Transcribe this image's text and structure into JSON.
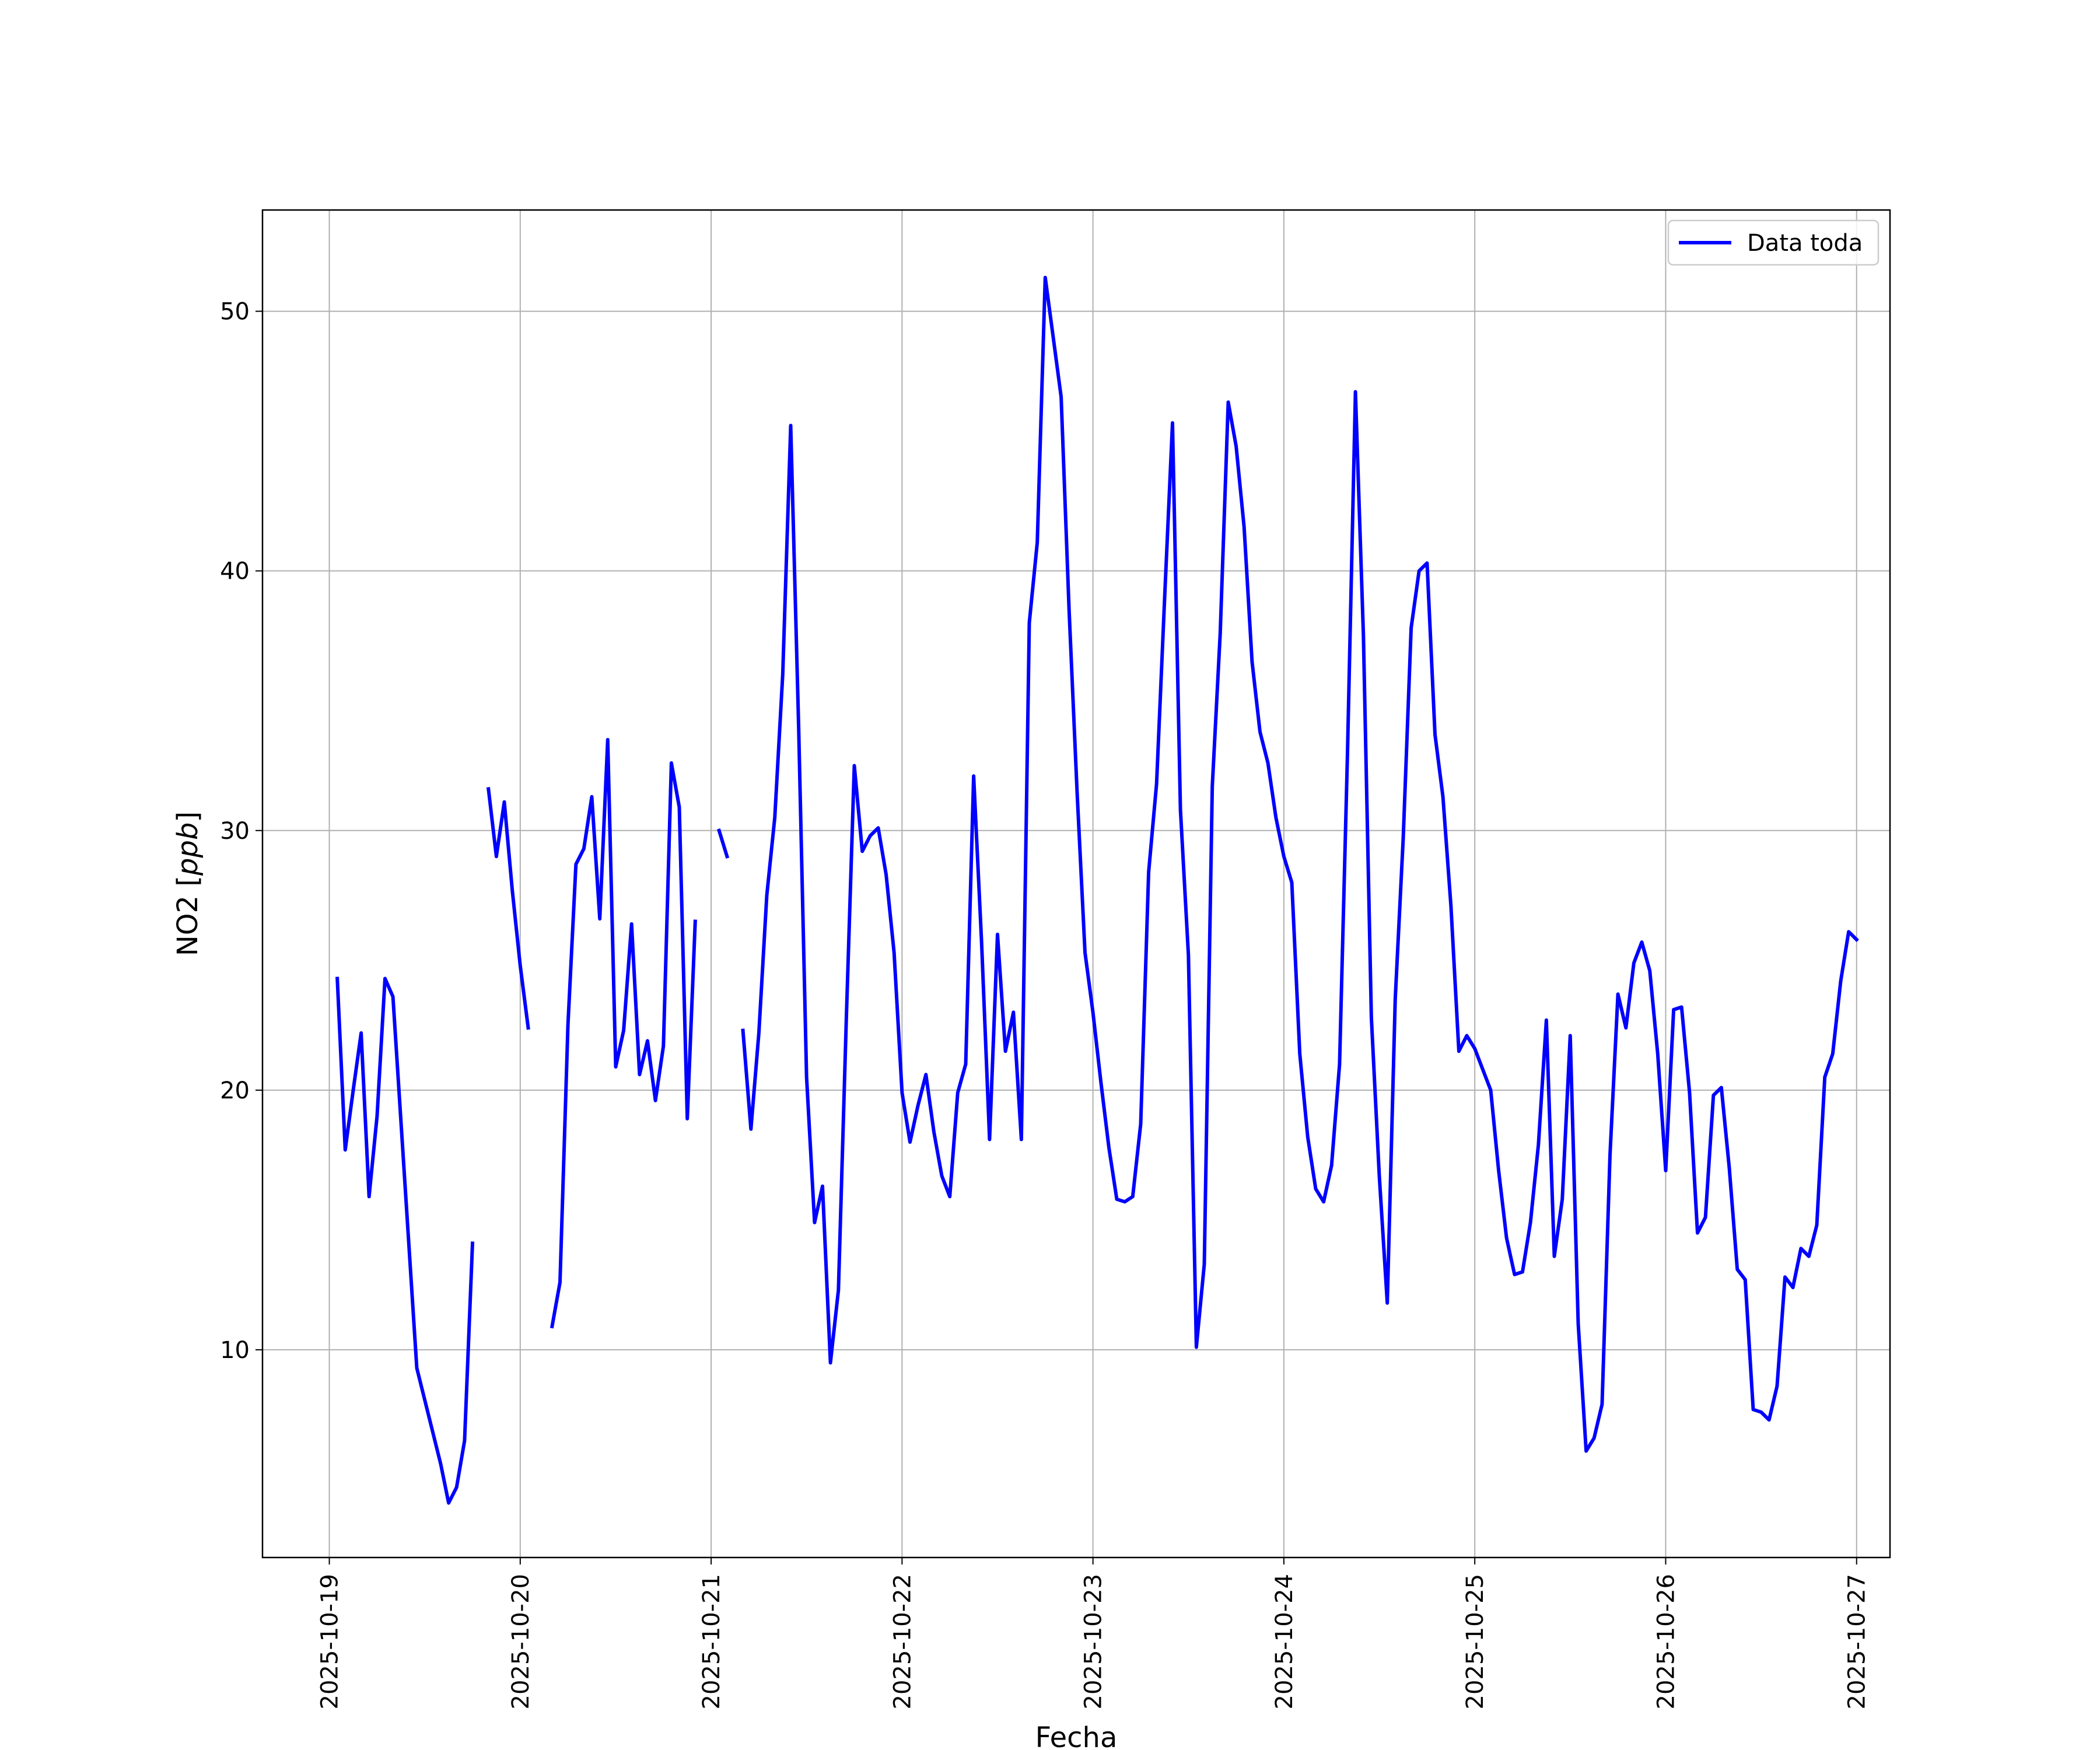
{
  "chart_data": {
    "type": "line",
    "title": "",
    "xlabel": "Fecha",
    "ylabel": "NO2 [ppb]",
    "ylabel_var": "NO2 ",
    "ylabel_unit": "ppb",
    "x_ticks": [
      "2025-10-19",
      "2025-10-20",
      "2025-10-21",
      "2025-10-22",
      "2025-10-23",
      "2025-10-24",
      "2025-10-25",
      "2025-10-26",
      "2025-10-27"
    ],
    "y_ticks": [
      10,
      20,
      30,
      40,
      50
    ],
    "xlim": [
      "2025-10-18T15:36",
      "2025-10-27T04:12"
    ],
    "ylim": [
      2.0,
      53.9
    ],
    "grid": true,
    "legend_position": "top-right",
    "color": "#0000ff",
    "series": [
      {
        "name": "Data toda",
        "segments": [
          [
            [
              "2025-10-19T01:00",
              24.3
            ],
            [
              "2025-10-19T02:00",
              17.7
            ],
            [
              "2025-10-19T03:00",
              20.0
            ],
            [
              "2025-10-19T04:00",
              22.2
            ],
            [
              "2025-10-19T05:00",
              15.9
            ],
            [
              "2025-10-19T06:00",
              19.0
            ],
            [
              "2025-10-19T07:00",
              24.3
            ],
            [
              "2025-10-19T08:00",
              23.6
            ],
            [
              "2025-10-19T11:00",
              9.3
            ],
            [
              "2025-10-19T14:00",
              5.6
            ],
            [
              "2025-10-19T15:00",
              4.1
            ],
            [
              "2025-10-19T16:00",
              4.7
            ],
            [
              "2025-10-19T17:00",
              6.5
            ],
            [
              "2025-10-19T18:00",
              14.1
            ]
          ],
          [
            [
              "2025-10-19T20:00",
              31.6
            ],
            [
              "2025-10-19T21:00",
              29.0
            ],
            [
              "2025-10-19T22:00",
              31.1
            ],
            [
              "2025-10-19T23:00",
              27.7
            ],
            [
              "2025-10-20T00:00",
              24.8
            ],
            [
              "2025-10-20T01:00",
              22.4
            ]
          ],
          [
            [
              "2025-10-20T04:00",
              10.9
            ],
            [
              "2025-10-20T05:00",
              12.6
            ],
            [
              "2025-10-20T06:00",
              22.5
            ],
            [
              "2025-10-20T07:00",
              28.7
            ],
            [
              "2025-10-20T08:00",
              29.3
            ],
            [
              "2025-10-20T09:00",
              31.3
            ],
            [
              "2025-10-20T10:00",
              26.6
            ],
            [
              "2025-10-20T11:00",
              33.5
            ],
            [
              "2025-10-20T12:00",
              20.9
            ],
            [
              "2025-10-20T13:00",
              22.3
            ],
            [
              "2025-10-20T14:00",
              26.4
            ],
            [
              "2025-10-20T15:00",
              20.6
            ],
            [
              "2025-10-20T16:00",
              21.9
            ],
            [
              "2025-10-20T17:00",
              19.6
            ],
            [
              "2025-10-20T18:00",
              21.7
            ],
            [
              "2025-10-20T19:00",
              32.6
            ],
            [
              "2025-10-20T20:00",
              30.9
            ],
            [
              "2025-10-20T21:00",
              18.9
            ],
            [
              "2025-10-20T22:00",
              26.5
            ]
          ],
          [
            [
              "2025-10-21T01:00",
              30.0
            ],
            [
              "2025-10-21T02:00",
              29.0
            ]
          ],
          [
            [
              "2025-10-21T04:00",
              22.3
            ],
            [
              "2025-10-21T05:00",
              18.5
            ],
            [
              "2025-10-21T06:00",
              22.2
            ],
            [
              "2025-10-21T07:00",
              27.5
            ],
            [
              "2025-10-21T08:00",
              30.5
            ],
            [
              "2025-10-21T09:00",
              36.0
            ],
            [
              "2025-10-21T10:00",
              45.6
            ],
            [
              "2025-10-21T11:00",
              34.0
            ],
            [
              "2025-10-21T12:00",
              20.5
            ],
            [
              "2025-10-21T13:00",
              14.9
            ],
            [
              "2025-10-21T14:00",
              16.3
            ],
            [
              "2025-10-21T15:00",
              9.5
            ],
            [
              "2025-10-21T16:00",
              12.3
            ],
            [
              "2025-10-21T17:00",
              22.8
            ],
            [
              "2025-10-21T18:00",
              32.5
            ],
            [
              "2025-10-21T19:00",
              29.2
            ],
            [
              "2025-10-21T20:00",
              29.8
            ],
            [
              "2025-10-21T21:00",
              30.1
            ],
            [
              "2025-10-21T22:00",
              28.3
            ],
            [
              "2025-10-21T23:00",
              25.3
            ],
            [
              "2025-10-22T00:00",
              19.9
            ],
            [
              "2025-10-22T01:00",
              18.0
            ],
            [
              "2025-10-22T02:00",
              19.4
            ],
            [
              "2025-10-22T03:00",
              20.6
            ],
            [
              "2025-10-22T04:00",
              18.4
            ],
            [
              "2025-10-22T05:00",
              16.7
            ],
            [
              "2025-10-22T06:00",
              15.9
            ],
            [
              "2025-10-22T07:00",
              19.9
            ],
            [
              "2025-10-22T08:00",
              21.0
            ],
            [
              "2025-10-22T09:00",
              32.1
            ],
            [
              "2025-10-22T10:00",
              25.7
            ],
            [
              "2025-10-22T11:00",
              18.1
            ],
            [
              "2025-10-22T12:00",
              26.0
            ],
            [
              "2025-10-22T13:00",
              21.5
            ],
            [
              "2025-10-22T14:00",
              23.0
            ],
            [
              "2025-10-22T15:00",
              18.1
            ],
            [
              "2025-10-22T16:00",
              38.0
            ],
            [
              "2025-10-22T17:00",
              41.1
            ],
            [
              "2025-10-22T18:00",
              51.3
            ],
            [
              "2025-10-22T19:00",
              49.0
            ],
            [
              "2025-10-22T20:00",
              46.7
            ],
            [
              "2025-10-22T21:00",
              38.5
            ],
            [
              "2025-10-22T22:00",
              31.5
            ],
            [
              "2025-10-22T23:00",
              25.3
            ],
            [
              "2025-10-23T00:00",
              23.0
            ],
            [
              "2025-10-23T01:00",
              20.3
            ],
            [
              "2025-10-23T02:00",
              17.8
            ],
            [
              "2025-10-23T03:00",
              15.8
            ],
            [
              "2025-10-23T04:00",
              15.7
            ],
            [
              "2025-10-23T05:00",
              15.9
            ],
            [
              "2025-10-23T06:00",
              18.7
            ],
            [
              "2025-10-23T07:00",
              28.4
            ],
            [
              "2025-10-23T08:00",
              31.8
            ],
            [
              "2025-10-23T09:00",
              38.9
            ],
            [
              "2025-10-23T10:00",
              45.7
            ],
            [
              "2025-10-23T11:00",
              30.8
            ],
            [
              "2025-10-23T12:00",
              25.2
            ],
            [
              "2025-10-23T13:00",
              10.1
            ],
            [
              "2025-10-23T14:00",
              13.3
            ],
            [
              "2025-10-23T15:00",
              31.7
            ],
            [
              "2025-10-23T16:00",
              37.6
            ],
            [
              "2025-10-23T17:00",
              46.5
            ],
            [
              "2025-10-23T18:00",
              44.8
            ],
            [
              "2025-10-23T19:00",
              41.7
            ],
            [
              "2025-10-23T20:00",
              36.5
            ],
            [
              "2025-10-23T21:00",
              33.8
            ],
            [
              "2025-10-23T22:00",
              32.6
            ],
            [
              "2025-10-23T23:00",
              30.5
            ],
            [
              "2025-10-24T00:00",
              29.0
            ],
            [
              "2025-10-24T01:00",
              28.0
            ],
            [
              "2025-10-24T02:00",
              21.4
            ],
            [
              "2025-10-24T03:00",
              18.2
            ],
            [
              "2025-10-24T04:00",
              16.2
            ],
            [
              "2025-10-24T05:00",
              15.7
            ],
            [
              "2025-10-24T06:00",
              17.1
            ],
            [
              "2025-10-24T07:00",
              21.0
            ],
            [
              "2025-10-24T08:00",
              33.0
            ],
            [
              "2025-10-24T09:00",
              46.9
            ],
            [
              "2025-10-24T10:00",
              37.5
            ],
            [
              "2025-10-24T11:00",
              22.8
            ],
            [
              "2025-10-24T12:00",
              16.7
            ],
            [
              "2025-10-24T13:00",
              11.8
            ],
            [
              "2025-10-24T14:00",
              23.5
            ],
            [
              "2025-10-24T15:00",
              29.7
            ],
            [
              "2025-10-24T16:00",
              37.8
            ],
            [
              "2025-10-24T17:00",
              40.0
            ],
            [
              "2025-10-24T18:00",
              40.3
            ],
            [
              "2025-10-24T19:00",
              33.7
            ],
            [
              "2025-10-24T20:00",
              31.3
            ],
            [
              "2025-10-24T21:00",
              27.1
            ],
            [
              "2025-10-24T22:00",
              21.5
            ],
            [
              "2025-10-24T23:00",
              22.1
            ],
            [
              "2025-10-25T00:00",
              21.6
            ],
            [
              "2025-10-25T01:00",
              20.8
            ],
            [
              "2025-10-25T02:00",
              20.0
            ],
            [
              "2025-10-25T03:00",
              16.9
            ],
            [
              "2025-10-25T04:00",
              14.3
            ],
            [
              "2025-10-25T05:00",
              12.9
            ],
            [
              "2025-10-25T06:00",
              13.0
            ],
            [
              "2025-10-25T07:00",
              14.9
            ],
            [
              "2025-10-25T08:00",
              17.9
            ],
            [
              "2025-10-25T09:00",
              22.7
            ],
            [
              "2025-10-25T10:00",
              13.6
            ],
            [
              "2025-10-25T11:00",
              15.8
            ],
            [
              "2025-10-25T12:00",
              22.1
            ],
            [
              "2025-10-25T13:00",
              11.0
            ],
            [
              "2025-10-25T14:00",
              6.1
            ],
            [
              "2025-10-25T15:00",
              6.6
            ],
            [
              "2025-10-25T16:00",
              7.9
            ],
            [
              "2025-10-25T17:00",
              17.5
            ],
            [
              "2025-10-25T18:00",
              23.7
            ],
            [
              "2025-10-25T19:00",
              22.4
            ],
            [
              "2025-10-25T20:00",
              24.9
            ],
            [
              "2025-10-25T21:00",
              25.7
            ],
            [
              "2025-10-25T22:00",
              24.6
            ],
            [
              "2025-10-25T23:00",
              21.4
            ],
            [
              "2025-10-26T00:00",
              16.9
            ],
            [
              "2025-10-26T01:00",
              23.1
            ],
            [
              "2025-10-26T02:00",
              23.2
            ],
            [
              "2025-10-26T03:00",
              19.9
            ],
            [
              "2025-10-26T04:00",
              14.5
            ],
            [
              "2025-10-26T05:00",
              15.1
            ],
            [
              "2025-10-26T06:00",
              19.8
            ],
            [
              "2025-10-26T07:00",
              20.1
            ],
            [
              "2025-10-26T08:00",
              17.0
            ],
            [
              "2025-10-26T09:00",
              13.1
            ],
            [
              "2025-10-26T10:00",
              12.7
            ],
            [
              "2025-10-26T11:00",
              7.7
            ],
            [
              "2025-10-26T12:00",
              7.6
            ],
            [
              "2025-10-26T13:00",
              7.3
            ],
            [
              "2025-10-26T14:00",
              8.6
            ],
            [
              "2025-10-26T15:00",
              12.8
            ],
            [
              "2025-10-26T16:00",
              12.4
            ],
            [
              "2025-10-26T17:00",
              13.9
            ],
            [
              "2025-10-26T18:00",
              13.6
            ],
            [
              "2025-10-26T19:00",
              14.8
            ],
            [
              "2025-10-26T20:00",
              20.5
            ],
            [
              "2025-10-26T21:00",
              21.4
            ],
            [
              "2025-10-26T22:00",
              24.2
            ],
            [
              "2025-10-26T23:00",
              26.1
            ],
            [
              "2025-10-27T00:00",
              25.8
            ]
          ]
        ]
      }
    ]
  }
}
